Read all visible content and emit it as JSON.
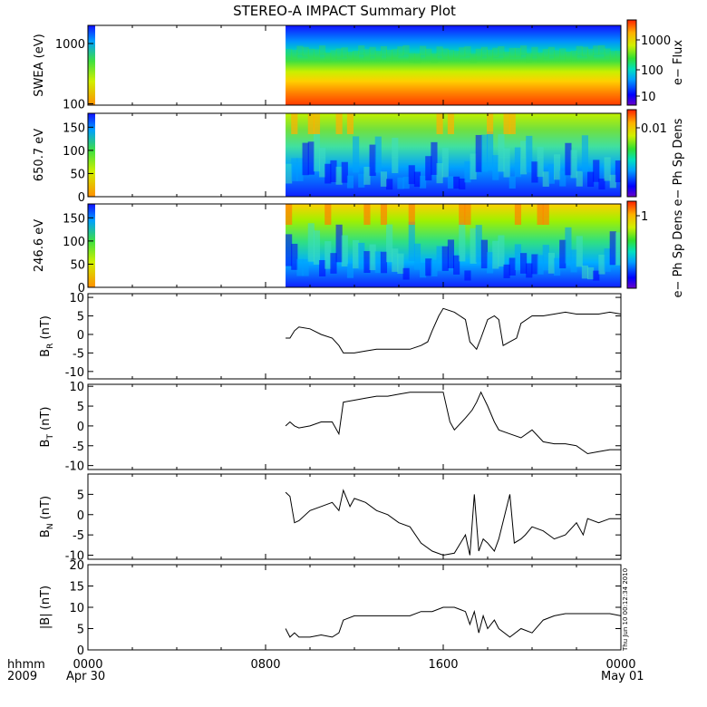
{
  "title": "STEREO-A IMPACT Summary Plot",
  "timestamp": "Thu Jun 10 00:12:34 2010",
  "x_axis": {
    "row1_left": "hhmm",
    "row2_left": "2009",
    "tick_labels": [
      "0000",
      "0800",
      "1600",
      "0000"
    ],
    "date_labels": {
      "start": "Apr 30",
      "end": "May 01"
    }
  },
  "colorbars": [
    {
      "label": "e− Flux",
      "tick_labels": [
        "1000",
        "100",
        "10"
      ],
      "scale": "log"
    },
    {
      "label": "e− Ph Sp Dens",
      "tick_labels": [
        "0.01"
      ],
      "scale": "log"
    },
    {
      "label": "e− Ph Sp Dens",
      "tick_labels": [
        "1"
      ],
      "scale": "log"
    }
  ],
  "chart_data": [
    {
      "type": "heatmap",
      "ylabel": "SWEA (eV)",
      "y_ticks": [
        "1000",
        "100"
      ],
      "yscale": "log",
      "ylim": [
        95,
        2000
      ],
      "xlim": [
        "00:00",
        "24:00"
      ],
      "data_start_hour": 8.9,
      "description_values": "energy-time spectrogram; high flux (red, ~1000-3000) at low energy, low flux (blue, ~10) at high energy"
    },
    {
      "type": "heatmap",
      "ylabel": "650.7 eV",
      "y_ticks": [
        "150",
        "100",
        "50",
        "0"
      ],
      "ylim": [
        0,
        180
      ],
      "xlim": [
        "00:00",
        "24:00"
      ],
      "data_start_hour": 8.9
    },
    {
      "type": "heatmap",
      "ylabel": "246.6 eV",
      "y_ticks": [
        "150",
        "100",
        "50",
        "0"
      ],
      "ylim": [
        0,
        180
      ],
      "xlim": [
        "00:00",
        "24:00"
      ],
      "data_start_hour": 8.9
    },
    {
      "type": "line",
      "ylabel_main": "B",
      "ylabel_sub": "R",
      "ylabel_unit": " (nT)",
      "ylim": [
        -12,
        11
      ],
      "y_ticks": [
        10,
        5,
        0,
        -5,
        -10
      ],
      "series": [
        {
          "x": [
            8.9,
            9.1,
            9.3,
            9.5,
            10.0,
            10.5,
            11.0,
            11.3,
            11.5,
            12.0,
            12.5,
            13.0,
            13.5,
            14.0,
            14.5,
            15.0,
            15.3,
            15.5,
            15.8,
            16.0,
            16.5,
            17.0,
            17.2,
            17.5,
            17.7,
            18.0,
            18.3,
            18.5,
            18.7,
            19.0,
            19.3,
            19.5,
            20.0,
            20.5,
            21.0,
            21.5,
            22.0,
            22.5,
            23.0,
            23.5,
            24.0
          ],
          "y": [
            -1,
            -1,
            1,
            2,
            1.5,
            0,
            -1,
            -3,
            -5,
            -5,
            -4.5,
            -4,
            -4,
            -4,
            -4,
            -3,
            -2,
            1,
            5,
            7,
            6,
            4,
            -2,
            -4,
            -1,
            4,
            5,
            4,
            -3,
            -2,
            -1,
            3,
            5,
            5,
            5.5,
            6,
            5.5,
            5.5,
            5.5,
            6,
            5.5
          ]
        }
      ]
    },
    {
      "type": "line",
      "ylabel_main": "B",
      "ylabel_sub": "T",
      "ylabel_unit": " (nT)",
      "ylim": [
        -11,
        10.5
      ],
      "y_ticks": [
        10,
        5,
        0,
        -5,
        -10
      ],
      "series": [
        {
          "x": [
            8.9,
            9.1,
            9.3,
            9.5,
            10.0,
            10.5,
            11.0,
            11.3,
            11.5,
            12.0,
            12.5,
            13.0,
            13.5,
            14.0,
            14.5,
            15.0,
            15.5,
            16.0,
            16.3,
            16.5,
            17.0,
            17.3,
            17.5,
            17.7,
            18.0,
            18.3,
            18.5,
            19.0,
            19.5,
            20.0,
            20.5,
            21.0,
            21.5,
            22.0,
            22.5,
            23.0,
            23.5,
            24.0
          ],
          "y": [
            0,
            1,
            0,
            -0.5,
            0,
            1,
            1,
            -2,
            6,
            6.5,
            7,
            7.5,
            7.5,
            8,
            8.5,
            8.5,
            8.5,
            8.5,
            1,
            -1,
            2,
            4,
            6,
            8.5,
            5,
            1,
            -1,
            -2,
            -3,
            -1,
            -4,
            -4.5,
            -4.5,
            -5,
            -7,
            -6.5,
            -6,
            -6
          ]
        }
      ]
    },
    {
      "type": "line",
      "ylabel_main": "B",
      "ylabel_sub": "N",
      "ylabel_unit": " (nT)",
      "ylim": [
        -11,
        10
      ],
      "y_ticks": [
        5,
        0,
        -5,
        -10
      ],
      "series": [
        {
          "x": [
            8.9,
            9.1,
            9.3,
            9.5,
            10.0,
            10.5,
            11.0,
            11.3,
            11.5,
            11.8,
            12.0,
            12.5,
            13.0,
            13.5,
            14.0,
            14.5,
            15.0,
            15.5,
            16.0,
            16.5,
            17.0,
            17.2,
            17.4,
            17.6,
            17.8,
            18.0,
            18.3,
            18.5,
            19.0,
            19.2,
            19.5,
            19.7,
            20.0,
            20.5,
            21.0,
            21.5,
            22.0,
            22.3,
            22.5,
            23.0,
            23.5,
            24.0
          ],
          "y": [
            5.5,
            4.5,
            -2,
            -1.5,
            1,
            2,
            3,
            1,
            6,
            2,
            4,
            3,
            1,
            0,
            -2,
            -3,
            -7,
            -9,
            -10,
            -9.5,
            -5,
            -10,
            5,
            -9,
            -6,
            -7,
            -9,
            -6,
            5,
            -7,
            -6,
            -5,
            -3,
            -4,
            -6,
            -5,
            -2,
            -5,
            -1,
            -2,
            -1,
            -1
          ]
        }
      ]
    },
    {
      "type": "line",
      "ylabel_main": "|B|",
      "ylabel_sub": "",
      "ylabel_unit": " (nT)",
      "ylim": [
        0,
        20
      ],
      "y_ticks": [
        20,
        15,
        10,
        5,
        0
      ],
      "series": [
        {
          "x": [
            8.9,
            9.1,
            9.3,
            9.5,
            10.0,
            10.5,
            11.0,
            11.3,
            11.5,
            12.0,
            12.5,
            13.0,
            13.5,
            14.0,
            14.5,
            15.0,
            15.5,
            16.0,
            16.5,
            17.0,
            17.2,
            17.4,
            17.6,
            17.8,
            18.0,
            18.3,
            18.5,
            19.0,
            19.5,
            20.0,
            20.5,
            21.0,
            21.5,
            22.0,
            22.5,
            23.0,
            23.5,
            24.0
          ],
          "y": [
            5,
            3,
            4,
            3,
            3,
            3.5,
            3,
            4,
            7,
            8,
            8,
            8,
            8,
            8,
            8,
            9,
            9,
            10,
            10,
            9,
            6,
            9,
            4,
            8,
            5,
            7,
            5,
            3,
            5,
            4,
            7,
            8,
            8.5,
            8.5,
            8.5,
            8.5,
            8.5,
            8
          ]
        }
      ]
    }
  ]
}
